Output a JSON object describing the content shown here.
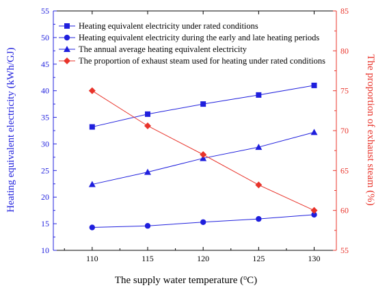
{
  "colors": {
    "left_axis": "#1f1fdd",
    "right_axis": "#e8332a",
    "axis_black": "#000000"
  },
  "chart_data": {
    "type": "line",
    "x": [
      110,
      115,
      120,
      125,
      130
    ],
    "xlabel_prefix": "The supply water temperature (",
    "xlabel_sup": "o",
    "xlabel_suffix": "C)",
    "ylabel_left": "Heating equivalent electricity (kWh/GJ)",
    "ylabel_right": "The proportion of exhaust steam (%)",
    "xlim": [
      106.5,
      132
    ],
    "ylim_left": [
      10,
      55
    ],
    "ylim_right": [
      55,
      85
    ],
    "xticks": [
      110,
      115,
      120,
      125,
      130
    ],
    "yticks_left": [
      10,
      15,
      20,
      25,
      30,
      35,
      40,
      45,
      50,
      55
    ],
    "yticks_right": [
      55,
      60,
      65,
      70,
      75,
      80,
      85
    ],
    "grid": false,
    "legend_position": "top-left",
    "series": [
      {
        "name": "Heating equivalent electricity under rated conditions",
        "axis": "left",
        "marker": "square",
        "color": "#1f1fdd",
        "values": [
          33.2,
          35.6,
          37.5,
          39.2,
          41.0
        ]
      },
      {
        "name": "Heating equivalent electricity during the early and late heating periods",
        "axis": "left",
        "marker": "circle",
        "color": "#1f1fdd",
        "values": [
          14.3,
          14.6,
          15.3,
          15.9,
          16.7
        ]
      },
      {
        "name": "The annual average heating equivalent electricity",
        "axis": "left",
        "marker": "triangle",
        "color": "#1f1fdd",
        "values": [
          22.4,
          24.7,
          27.3,
          29.4,
          32.2
        ]
      },
      {
        "name": "The proportion of exhaust steam used for heating under rated conditions",
        "axis": "right",
        "marker": "diamond",
        "color": "#e8332a",
        "values": [
          75.0,
          70.6,
          67.0,
          63.2,
          60.0
        ]
      }
    ]
  }
}
